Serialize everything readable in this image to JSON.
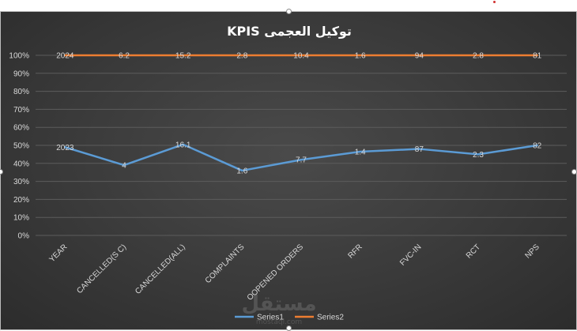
{
  "chart_data": {
    "type": "line",
    "title": "توكيل العجمى KPIS",
    "categories": [
      "YEAR",
      "CANCELLED(S C)",
      "CANCELLED(ALL)",
      "COMPLAINTS",
      "OOPENED ORDERS",
      "RFR",
      "FVC-IN",
      "RCT",
      "NPS"
    ],
    "y_ticks": [
      "0%",
      "10%",
      "20%",
      "30%",
      "40%",
      "50%",
      "60%",
      "70%",
      "80%",
      "90%",
      "100%"
    ],
    "ylim": [
      0,
      100
    ],
    "grid": true,
    "legend_position": "bottom",
    "series": [
      {
        "name": "Series1",
        "color": "#5b9bd5",
        "values": [
          49,
          39,
          50.5,
          36,
          42,
          46.5,
          48,
          45,
          50
        ],
        "labels": [
          "2023",
          "4",
          "16.1",
          "1.6",
          "7.7",
          "1.4",
          "87",
          "2.3",
          "82"
        ]
      },
      {
        "name": "Series2",
        "color": "#ed7d31",
        "values": [
          100,
          100,
          100,
          100,
          100,
          100,
          100,
          100,
          100
        ],
        "labels": [
          "2024",
          "6.2",
          "15.2",
          "2.8",
          "10.4",
          "1.6",
          "94",
          "2.8",
          "81"
        ]
      }
    ]
  },
  "watermark": {
    "text": "مستقل",
    "subtext": "mostaql.com"
  }
}
